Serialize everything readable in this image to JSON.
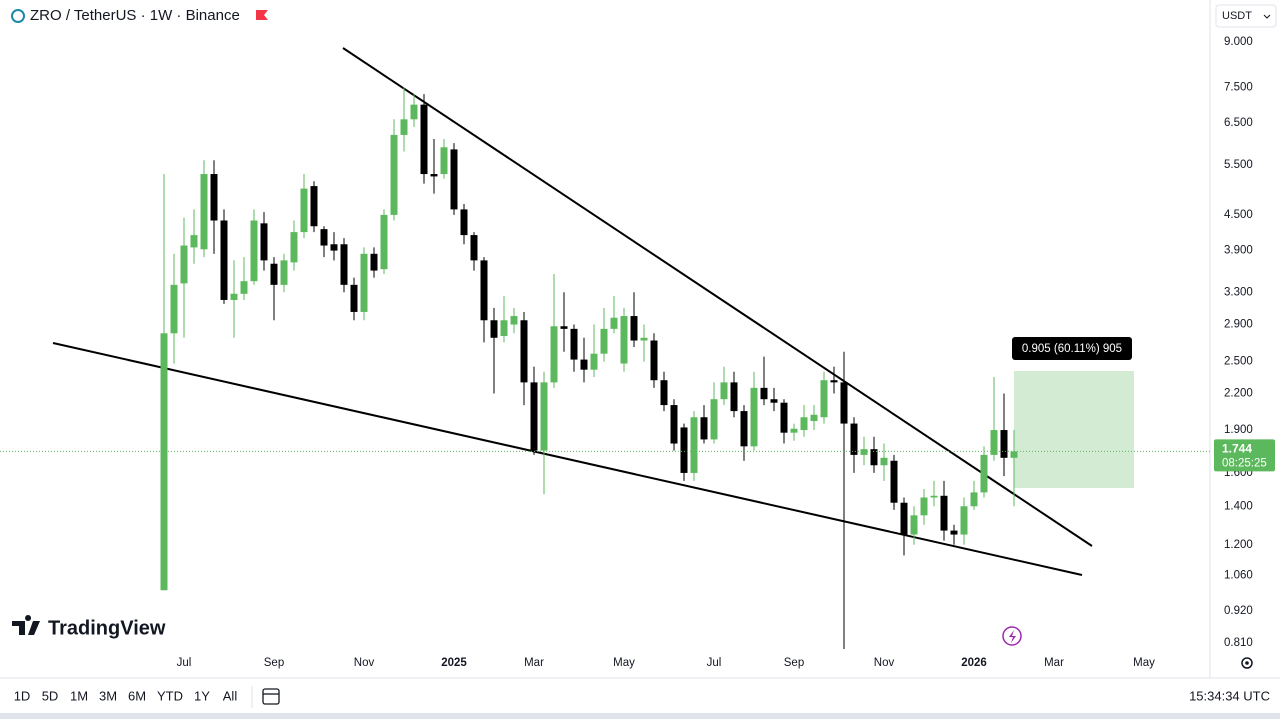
{
  "chart_data": {
    "type": "candlestick",
    "title": "ZRO / TetherUS · 1W · Binance",
    "currency": "USDT",
    "categories": [
      null,
      null,
      "Jul",
      null,
      null,
      null,
      null,
      null,
      null,
      null,
      null,
      "Sep",
      null,
      null,
      null,
      null,
      null,
      null,
      null,
      null,
      "Nov",
      null,
      null,
      null,
      null,
      null,
      null,
      null,
      null,
      "2025",
      null,
      null,
      null,
      null,
      null,
      null,
      null,
      "Mar",
      null,
      null,
      null,
      null,
      null,
      null,
      null,
      null,
      "May",
      null,
      null,
      null,
      null,
      null,
      null,
      null,
      null,
      "Jul",
      null,
      null,
      null,
      null,
      null,
      null,
      null,
      "Sep",
      null,
      null,
      null,
      null,
      null,
      null,
      null,
      null,
      "Nov",
      null,
      null,
      null,
      null,
      null,
      null,
      null,
      null,
      "2026",
      null,
      null,
      null,
      null,
      null,
      null,
      null,
      "Mar",
      null,
      null,
      null,
      null,
      null,
      null,
      null,
      null,
      "May"
    ],
    "open": [
      1.0,
      2.8,
      3.42,
      3.95,
      3.92,
      5.3,
      4.4,
      3.2,
      3.28,
      3.45,
      4.35,
      3.7,
      3.4,
      3.72,
      4.2,
      5.05,
      4.25,
      4.0,
      4.0,
      3.4,
      3.05,
      3.85,
      3.62,
      4.5,
      6.2,
      6.6,
      7.0,
      5.3,
      5.3,
      5.85,
      4.6,
      4.15,
      3.75,
      2.95,
      2.77,
      2.9,
      2.95,
      2.3,
      1.75,
      2.3,
      2.88,
      2.85,
      2.52,
      2.42,
      2.58,
      2.85,
      2.48,
      3.0,
      2.72,
      2.72,
      2.32,
      2.1,
      1.92,
      1.6,
      2.0,
      1.83,
      2.15,
      2.3,
      2.05,
      1.78,
      2.25,
      2.15,
      2.12,
      1.88,
      1.9,
      1.97,
      2.0,
      2.32,
      2.3,
      1.95,
      1.72,
      1.76,
      1.65,
      1.68,
      1.42,
      1.25,
      1.35,
      1.45,
      1.46,
      1.27,
      1.25,
      1.4,
      1.48,
      1.72,
      1.9,
      1.7,
      null,
      null,
      null,
      null,
      null,
      null,
      null,
      null,
      null,
      null,
      null,
      null,
      null
    ],
    "high": [
      5.3,
      3.85,
      4.45,
      4.6,
      5.6,
      5.6,
      4.6,
      3.75,
      3.8,
      4.6,
      4.55,
      3.8,
      3.85,
      4.4,
      5.3,
      5.15,
      4.3,
      4.2,
      4.1,
      3.5,
      3.95,
      3.95,
      4.6,
      6.6,
      7.5,
      7.3,
      7.3,
      6.1,
      6.1,
      6.0,
      4.7,
      4.2,
      3.8,
      3.1,
      3.25,
      3.1,
      3.05,
      2.45,
      2.4,
      3.55,
      3.3,
      2.9,
      2.75,
      2.9,
      3.1,
      3.25,
      3.1,
      3.3,
      2.9,
      2.8,
      2.4,
      2.15,
      1.95,
      2.05,
      2.1,
      2.3,
      2.45,
      2.4,
      2.1,
      2.4,
      2.55,
      2.25,
      2.15,
      1.95,
      2.1,
      2.1,
      2.4,
      2.45,
      2.6,
      2.0,
      1.85,
      1.85,
      1.8,
      1.72,
      1.45,
      1.4,
      1.5,
      1.55,
      1.55,
      1.3,
      1.45,
      1.55,
      1.78,
      2.35,
      2.2,
      1.9,
      null,
      null,
      null,
      null,
      null,
      null,
      null,
      null,
      null,
      null,
      null,
      null,
      null
    ],
    "low": [
      1.0,
      2.48,
      2.75,
      3.7,
      3.8,
      3.85,
      3.15,
      2.75,
      3.2,
      3.4,
      3.6,
      2.95,
      3.3,
      3.6,
      4.1,
      4.2,
      3.8,
      3.75,
      3.3,
      2.95,
      2.95,
      3.5,
      3.55,
      4.4,
      5.8,
      6.4,
      5.1,
      4.9,
      5.2,
      4.5,
      4.0,
      3.6,
      2.7,
      2.2,
      2.7,
      2.8,
      2.1,
      1.72,
      1.47,
      2.25,
      2.6,
      2.4,
      2.3,
      2.35,
      2.5,
      2.8,
      2.4,
      2.65,
      2.5,
      2.25,
      2.05,
      1.75,
      1.55,
      1.55,
      1.8,
      1.8,
      2.1,
      2.0,
      1.68,
      1.75,
      2.1,
      2.05,
      1.8,
      1.82,
      1.85,
      1.9,
      1.95,
      2.2,
      0.79,
      1.6,
      1.65,
      1.6,
      1.55,
      1.38,
      1.15,
      1.2,
      1.3,
      1.4,
      1.22,
      1.2,
      1.2,
      1.38,
      1.45,
      1.68,
      1.58,
      1.4,
      null,
      null,
      null,
      null,
      null,
      null,
      null,
      null,
      null,
      null,
      null,
      null,
      null
    ],
    "close": [
      2.8,
      3.4,
      3.98,
      4.15,
      5.3,
      4.4,
      3.2,
      3.28,
      3.45,
      4.4,
      3.75,
      3.4,
      3.75,
      4.2,
      5.0,
      4.3,
      3.98,
      3.9,
      3.4,
      3.05,
      3.85,
      3.6,
      4.5,
      6.2,
      6.6,
      7.0,
      5.3,
      5.25,
      5.9,
      4.6,
      4.15,
      3.75,
      2.95,
      2.75,
      2.95,
      3.0,
      2.3,
      1.75,
      2.3,
      2.88,
      2.85,
      2.52,
      2.42,
      2.58,
      2.85,
      2.98,
      3.0,
      2.72,
      2.75,
      2.32,
      2.1,
      1.8,
      1.6,
      2.0,
      1.83,
      2.15,
      2.3,
      2.05,
      1.78,
      2.25,
      2.15,
      2.12,
      1.88,
      1.91,
      2.0,
      2.02,
      2.32,
      2.3,
      1.95,
      1.72,
      1.76,
      1.65,
      1.7,
      1.42,
      1.25,
      1.35,
      1.45,
      1.46,
      1.27,
      1.25,
      1.4,
      1.48,
      1.72,
      1.9,
      1.7,
      1.744,
      null,
      null,
      null,
      null,
      null,
      null,
      null,
      null,
      null,
      null,
      null,
      null,
      null
    ],
    "up_color": "#5cb85c",
    "down_color": "#000000",
    "log_scale": true,
    "grid": false,
    "ylim": [
      0.787,
      9.44
    ],
    "yticks": [
      {
        "value": 9,
        "label": "9.000"
      },
      {
        "value": 7.5,
        "label": "7.500"
      },
      {
        "value": 6.5,
        "label": "6.500"
      },
      {
        "value": 5.5,
        "label": "5.500"
      },
      {
        "value": 4.5,
        "label": "4.500"
      },
      {
        "value": 3.9,
        "label": "3.900"
      },
      {
        "value": 3.3,
        "label": "3.300"
      },
      {
        "value": 2.9,
        "label": "2.900"
      },
      {
        "value": 2.5,
        "label": "2.500"
      },
      {
        "value": 2.2,
        "label": "2.200"
      },
      {
        "value": 1.9,
        "label": "1.900"
      },
      {
        "value": 1.6,
        "label": "1.600"
      },
      {
        "value": 1.4,
        "label": "1.400"
      },
      {
        "value": 1.2,
        "label": "1.200"
      },
      {
        "value": 1.06,
        "label": "1.060"
      },
      {
        "value": 0.92,
        "label": "0.920"
      },
      {
        "value": 0.81,
        "label": "0.810"
      }
    ],
    "last_price": 1.744,
    "countdown": "08:25:25",
    "measure_label": "0.905 (60.11%) 905"
  },
  "toolbar": {
    "ranges": [
      "1D",
      "5D",
      "1M",
      "3M",
      "6M",
      "YTD",
      "1Y",
      "All"
    ],
    "clock": "15:34:34 UTC"
  },
  "logo": "TradingView"
}
